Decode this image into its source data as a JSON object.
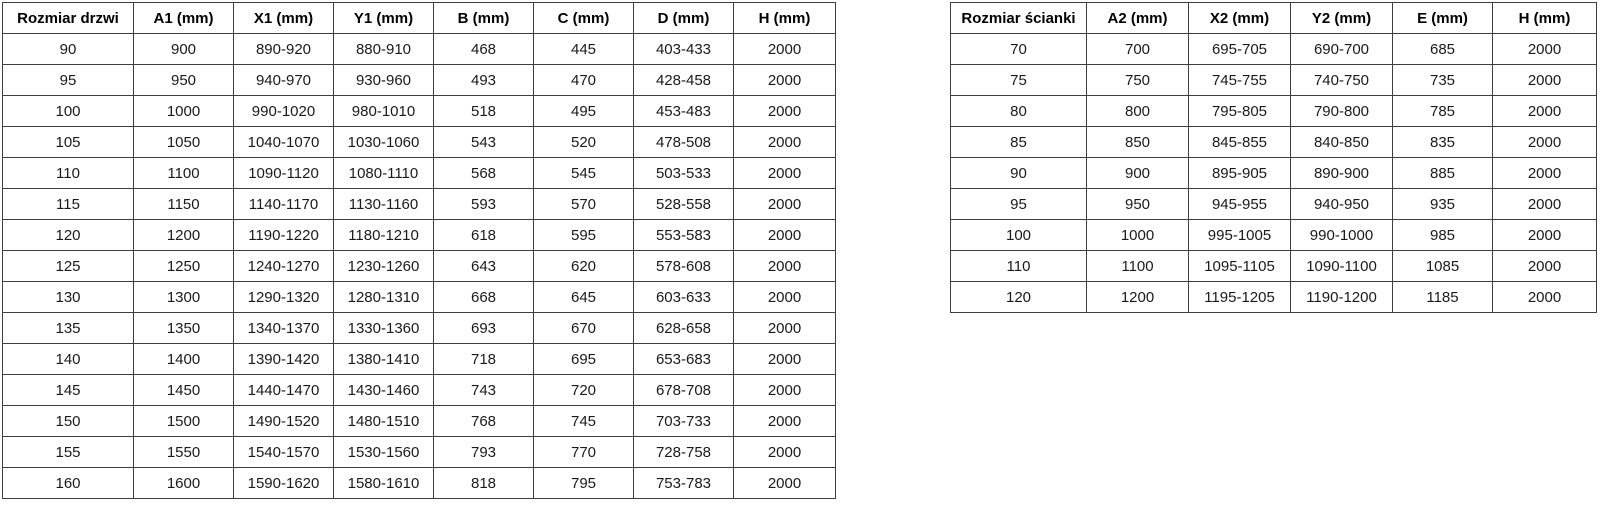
{
  "colors": {
    "background": "#ffffff",
    "border": "#3f3f3f",
    "header_text": "#000000",
    "body_text": "#1a1a1a"
  },
  "tables": [
    {
      "id": "door",
      "title_column": "Rozmiar drzwi",
      "headers": [
        "Rozmiar drzwi",
        "A1 (mm)",
        "X1 (mm)",
        "Y1 (mm)",
        "B (mm)",
        "C (mm)",
        "D (mm)",
        "H (mm)"
      ],
      "rows": [
        [
          "90",
          "900",
          "890-920",
          "880-910",
          "468",
          "445",
          "403-433",
          "2000"
        ],
        [
          "95",
          "950",
          "940-970",
          "930-960",
          "493",
          "470",
          "428-458",
          "2000"
        ],
        [
          "100",
          "1000",
          "990-1020",
          "980-1010",
          "518",
          "495",
          "453-483",
          "2000"
        ],
        [
          "105",
          "1050",
          "1040-1070",
          "1030-1060",
          "543",
          "520",
          "478-508",
          "2000"
        ],
        [
          "110",
          "1100",
          "1090-1120",
          "1080-1110",
          "568",
          "545",
          "503-533",
          "2000"
        ],
        [
          "115",
          "1150",
          "1140-1170",
          "1130-1160",
          "593",
          "570",
          "528-558",
          "2000"
        ],
        [
          "120",
          "1200",
          "1190-1220",
          "1180-1210",
          "618",
          "595",
          "553-583",
          "2000"
        ],
        [
          "125",
          "1250",
          "1240-1270",
          "1230-1260",
          "643",
          "620",
          "578-608",
          "2000"
        ],
        [
          "130",
          "1300",
          "1290-1320",
          "1280-1310",
          "668",
          "645",
          "603-633",
          "2000"
        ],
        [
          "135",
          "1350",
          "1340-1370",
          "1330-1360",
          "693",
          "670",
          "628-658",
          "2000"
        ],
        [
          "140",
          "1400",
          "1390-1420",
          "1380-1410",
          "718",
          "695",
          "653-683",
          "2000"
        ],
        [
          "145",
          "1450",
          "1440-1470",
          "1430-1460",
          "743",
          "720",
          "678-708",
          "2000"
        ],
        [
          "150",
          "1500",
          "1490-1520",
          "1480-1510",
          "768",
          "745",
          "703-733",
          "2000"
        ],
        [
          "155",
          "1550",
          "1540-1570",
          "1530-1560",
          "793",
          "770",
          "728-758",
          "2000"
        ],
        [
          "160",
          "1600",
          "1590-1620",
          "1580-1610",
          "818",
          "795",
          "753-783",
          "2000"
        ]
      ]
    },
    {
      "id": "wall",
      "title_column": "Rozmiar ścianki",
      "headers": [
        "Rozmiar ścianki",
        "A2 (mm)",
        "X2 (mm)",
        "Y2 (mm)",
        "E (mm)",
        "H (mm)"
      ],
      "rows": [
        [
          "70",
          "700",
          "695-705",
          "690-700",
          "685",
          "2000"
        ],
        [
          "75",
          "750",
          "745-755",
          "740-750",
          "735",
          "2000"
        ],
        [
          "80",
          "800",
          "795-805",
          "790-800",
          "785",
          "2000"
        ],
        [
          "85",
          "850",
          "845-855",
          "840-850",
          "835",
          "2000"
        ],
        [
          "90",
          "900",
          "895-905",
          "890-900",
          "885",
          "2000"
        ],
        [
          "95",
          "950",
          "945-955",
          "940-950",
          "935",
          "2000"
        ],
        [
          "100",
          "1000",
          "995-1005",
          "990-1000",
          "985",
          "2000"
        ],
        [
          "110",
          "1100",
          "1095-1105",
          "1090-1100",
          "1085",
          "2000"
        ],
        [
          "120",
          "1200",
          "1195-1205",
          "1190-1200",
          "1185",
          "2000"
        ]
      ]
    }
  ]
}
